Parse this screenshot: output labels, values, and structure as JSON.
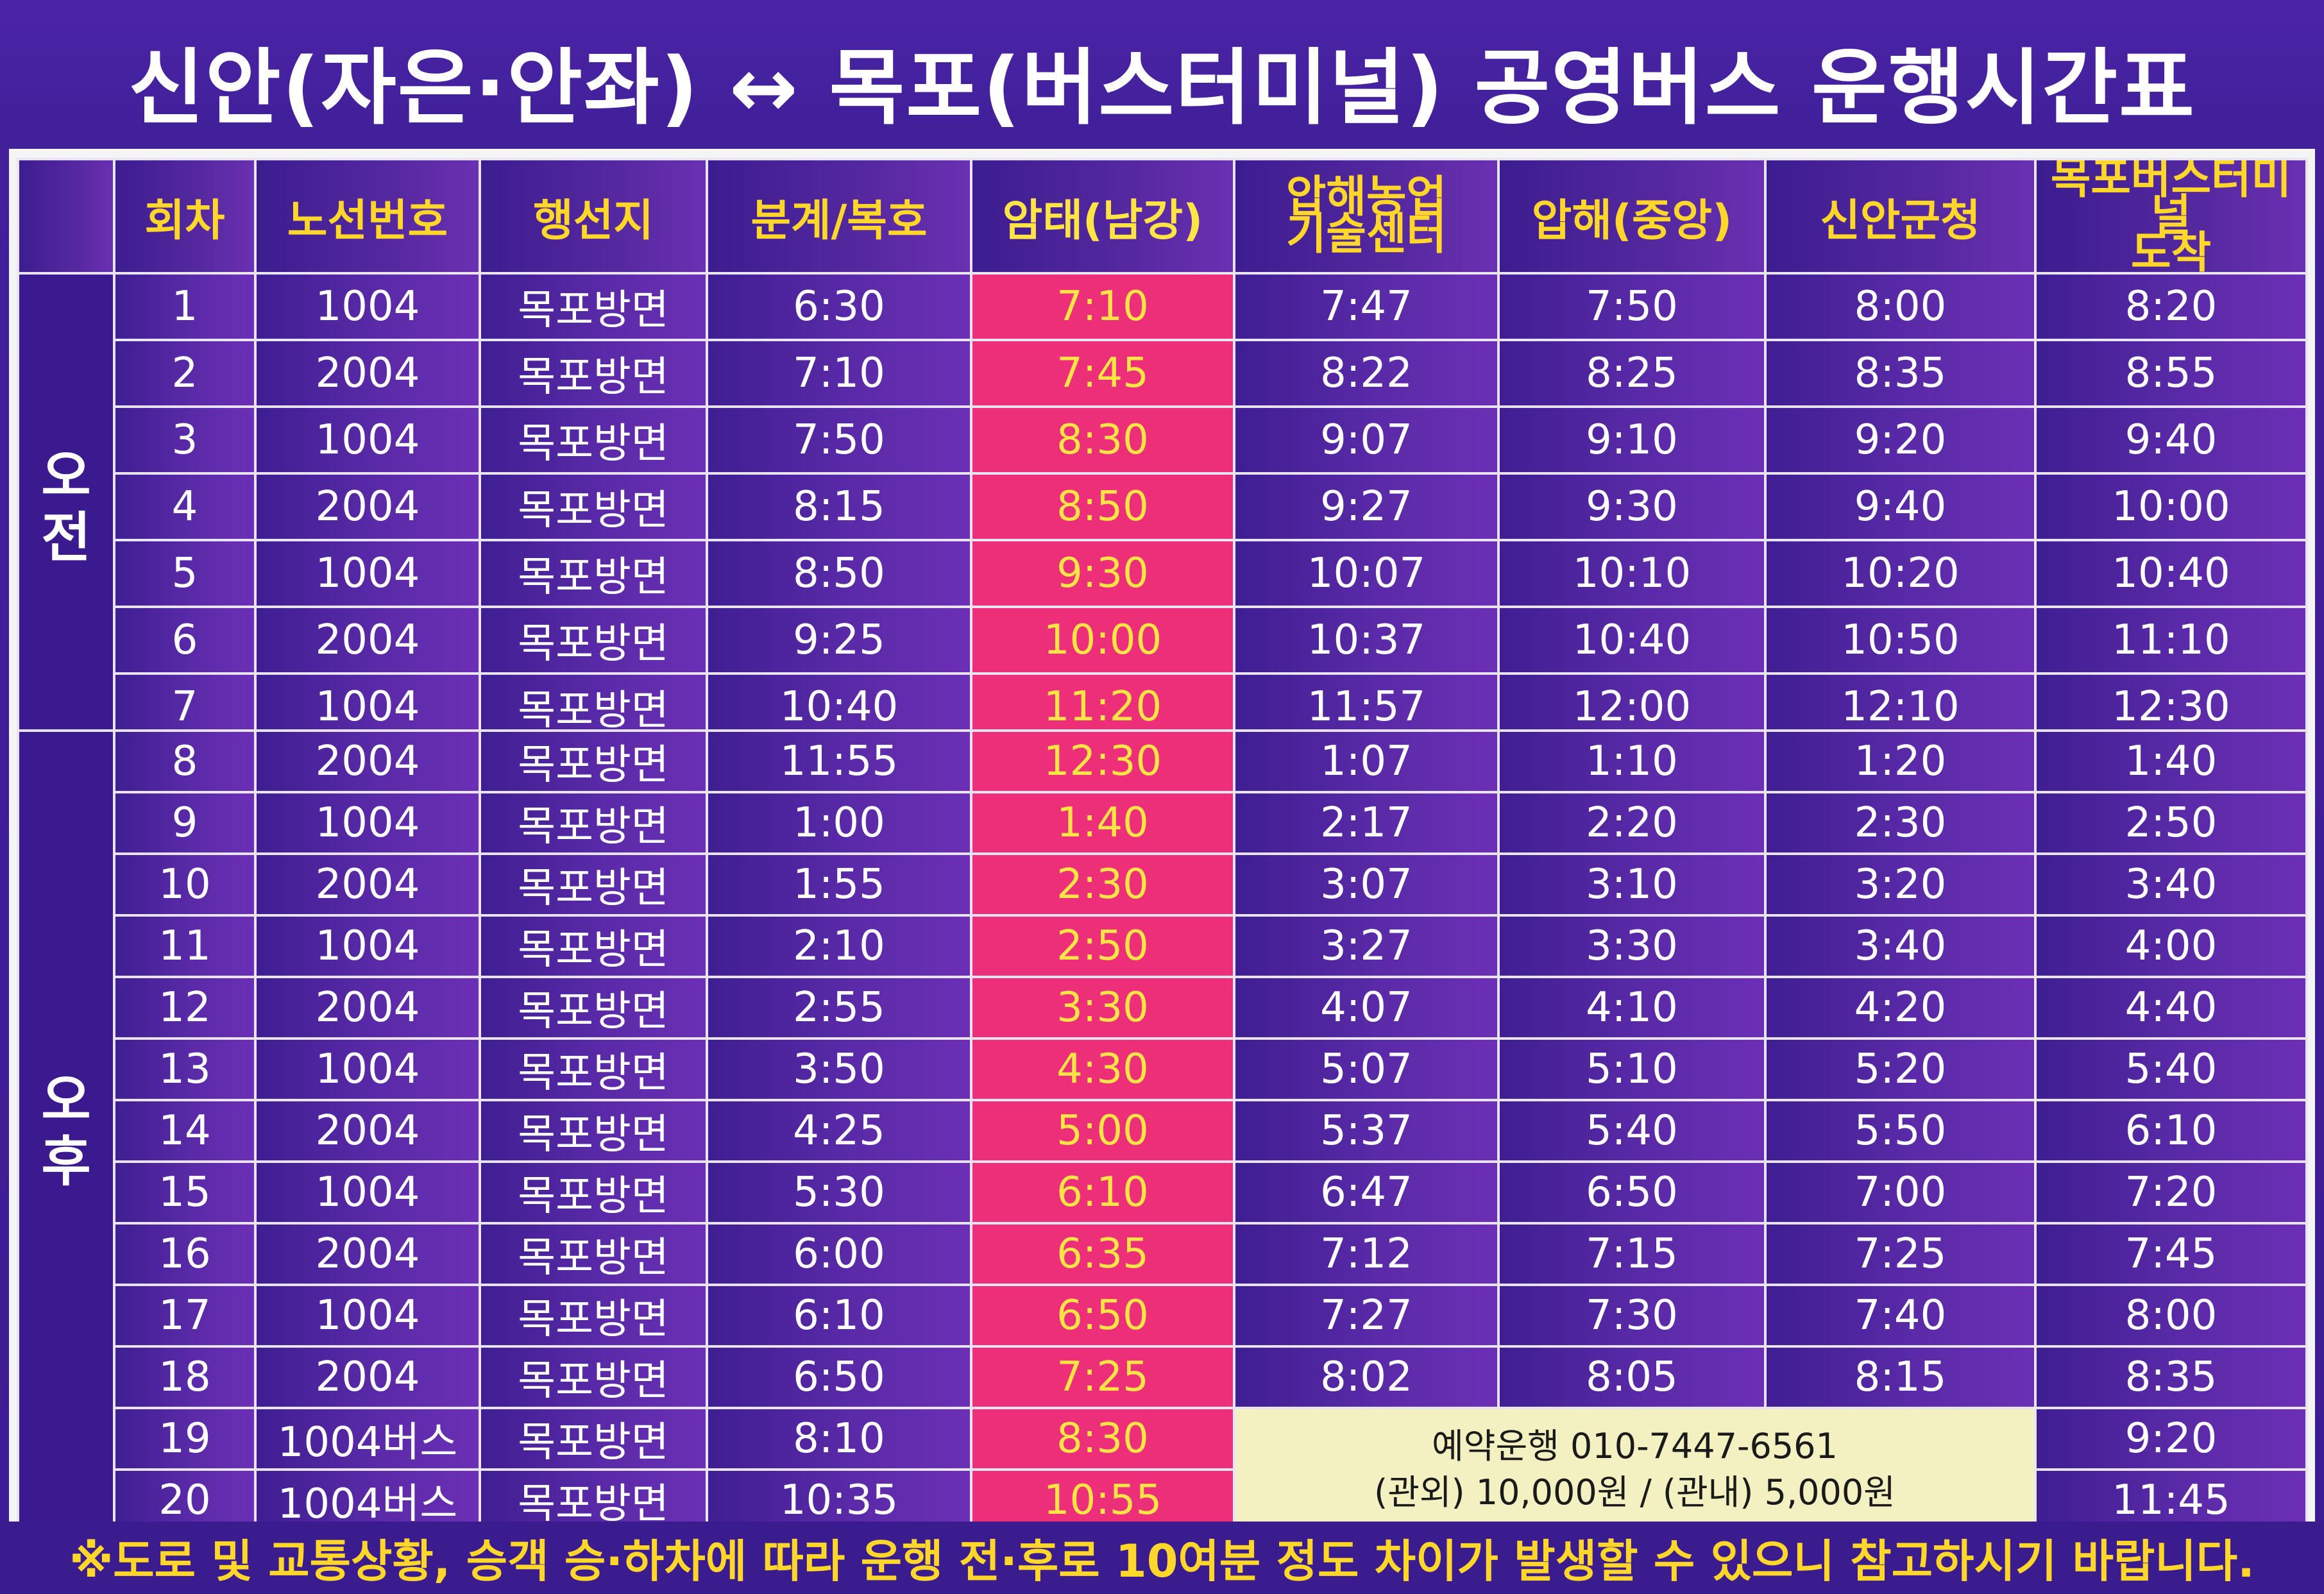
{
  "title": "신안(자은·안좌) ↔ 목포(버스터미널) 공영버스 운행시간표",
  "headers": {
    "trip": "회차",
    "route": "노선번호",
    "destination": "행선지",
    "bungye": "분계/복호",
    "amtae": "암태(남강)",
    "aphae_agri_1": "압해농업",
    "aphae_agri_2": "기술센터",
    "aphae_center": "압해(중앙)",
    "sinan_office": "신안군청",
    "mokpo_1": "목포버스터미널",
    "mokpo_2": "도착"
  },
  "periods": {
    "am": "오전",
    "pm": "오후"
  },
  "am_rows": [
    [
      "1",
      "1004",
      "목포방면",
      "6:30",
      "7:10",
      "7:47",
      "7:50",
      "8:00",
      "8:20"
    ],
    [
      "2",
      "2004",
      "목포방면",
      "7:10",
      "7:45",
      "8:22",
      "8:25",
      "8:35",
      "8:55"
    ],
    [
      "3",
      "1004",
      "목포방면",
      "7:50",
      "8:30",
      "9:07",
      "9:10",
      "9:20",
      "9:40"
    ],
    [
      "4",
      "2004",
      "목포방면",
      "8:15",
      "8:50",
      "9:27",
      "9:30",
      "9:40",
      "10:00"
    ],
    [
      "5",
      "1004",
      "목포방면",
      "8:50",
      "9:30",
      "10:07",
      "10:10",
      "10:20",
      "10:40"
    ],
    [
      "6",
      "2004",
      "목포방면",
      "9:25",
      "10:00",
      "10:37",
      "10:40",
      "10:50",
      "11:10"
    ],
    [
      "7",
      "1004",
      "목포방면",
      "10:40",
      "11:20",
      "11:57",
      "12:00",
      "12:10",
      "12:30"
    ]
  ],
  "pm_rows": [
    [
      "8",
      "2004",
      "목포방면",
      "11:55",
      "12:30",
      "1:07",
      "1:10",
      "1:20",
      "1:40"
    ],
    [
      "9",
      "1004",
      "목포방면",
      "1:00",
      "1:40",
      "2:17",
      "2:20",
      "2:30",
      "2:50"
    ],
    [
      "10",
      "2004",
      "목포방면",
      "1:55",
      "2:30",
      "3:07",
      "3:10",
      "3:20",
      "3:40"
    ],
    [
      "11",
      "1004",
      "목포방면",
      "2:10",
      "2:50",
      "3:27",
      "3:30",
      "3:40",
      "4:00"
    ],
    [
      "12",
      "2004",
      "목포방면",
      "2:55",
      "3:30",
      "4:07",
      "4:10",
      "4:20",
      "4:40"
    ],
    [
      "13",
      "1004",
      "목포방면",
      "3:50",
      "4:30",
      "5:07",
      "5:10",
      "5:20",
      "5:40"
    ],
    [
      "14",
      "2004",
      "목포방면",
      "4:25",
      "5:00",
      "5:37",
      "5:40",
      "5:50",
      "6:10"
    ],
    [
      "15",
      "1004",
      "목포방면",
      "5:30",
      "6:10",
      "6:47",
      "6:50",
      "7:00",
      "7:20"
    ],
    [
      "16",
      "2004",
      "목포방면",
      "6:00",
      "6:35",
      "7:12",
      "7:15",
      "7:25",
      "7:45"
    ],
    [
      "17",
      "1004",
      "목포방면",
      "6:10",
      "6:50",
      "7:27",
      "7:30",
      "7:40",
      "8:00"
    ],
    [
      "18",
      "2004",
      "목포방면",
      "6:50",
      "7:25",
      "8:02",
      "8:05",
      "8:15",
      "8:35"
    ]
  ],
  "reserved_rows": [
    [
      "19",
      "1004버스",
      "목포방면",
      "8:10",
      "8:30",
      "9:20"
    ],
    [
      "20",
      "1004버스",
      "목포방면",
      "10:35",
      "10:55",
      "11:45"
    ]
  ],
  "reservation_notice": {
    "line1": "예약운행 010-7447-6561",
    "line2": "(관외) 10,000원 / (관내) 5,000원"
  },
  "footer": "※도로 및 교통상황, 승객 승·하차에 따라 운행 전·후로 10여분 정도 차이가 발생할 수 있으니 참고하시기 바랍니다.",
  "colors": {
    "background": "#3c1c93",
    "header_text": "#ffd62a",
    "amtae_column": "#ec2f78",
    "amtae_text": "#ffe445",
    "notice_box": "#f3f0c2"
  }
}
